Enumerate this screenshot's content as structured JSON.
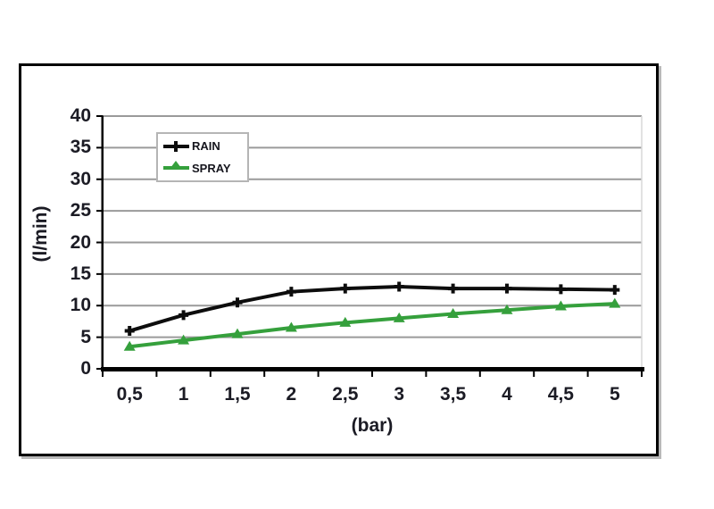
{
  "chart_data": {
    "type": "line",
    "categories": [
      "0,5",
      "1",
      "1,5",
      "2",
      "2,5",
      "3",
      "3,5",
      "4",
      "4,5",
      "5"
    ],
    "x_numeric": [
      0.5,
      1,
      1.5,
      2,
      2.5,
      3,
      3.5,
      4,
      4.5,
      5
    ],
    "series": [
      {
        "name": "RAIN",
        "color": "#0d0d0d",
        "marker": "plus",
        "values": [
          6.0,
          8.5,
          10.5,
          12.2,
          12.7,
          13.0,
          12.7,
          12.7,
          12.6,
          12.5
        ]
      },
      {
        "name": "SPRAY",
        "color": "#35a03c",
        "marker": "triangle-up",
        "values": [
          3.5,
          4.5,
          5.5,
          6.5,
          7.3,
          8.0,
          8.7,
          9.3,
          9.9,
          10.3
        ]
      }
    ],
    "title": "",
    "xlabel": "(bar)",
    "ylabel": "(l/min)",
    "ylim": [
      0,
      40
    ],
    "ytick_step": 5,
    "yticks": [
      "0",
      "5",
      "10",
      "15",
      "20",
      "25",
      "30",
      "35",
      "40"
    ],
    "grid": true,
    "gridline_color": "#9a9a9a",
    "axis_color": "#000000",
    "text_color": "#1b1b24",
    "legend_position": "top-left-inside"
  }
}
